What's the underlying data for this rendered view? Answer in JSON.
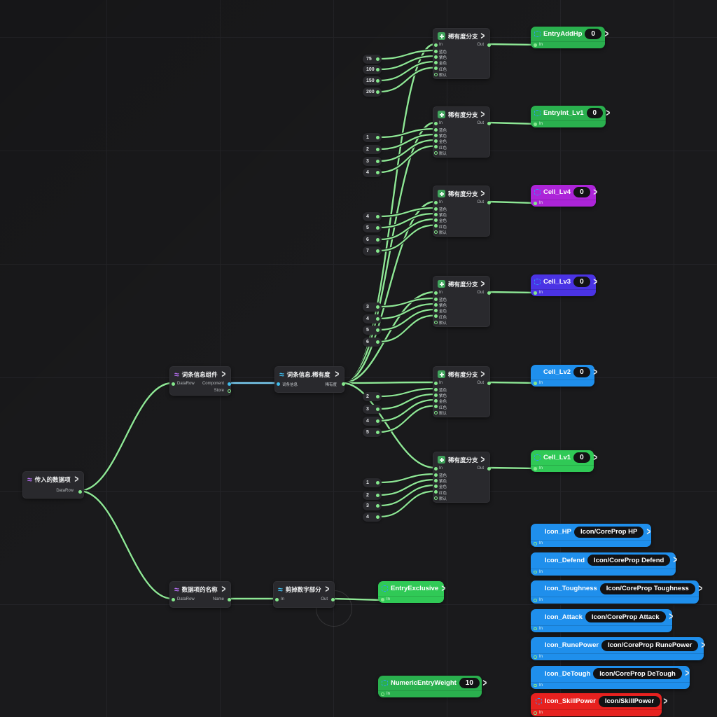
{
  "colors": {
    "background": "#1a1a1c",
    "grid_line": "#242428",
    "wire_green": "#8ee795",
    "wire_cyan": "#7acdf2",
    "port_dot_green": "#84e88c",
    "port_dot_cyan": "#3fbcec",
    "green": "#2ab04e",
    "green_bright": "#30c956",
    "purple": "#ac24d8",
    "indigo": "#4a33e4",
    "blue": "#1f8fec",
    "red": "#e7211f",
    "icon_blue": "#2e9df7",
    "icon_purple": "#b66ef2",
    "icon_cyan": "#3fbcec",
    "branch_icon_green": "#3fa35b"
  },
  "source_node": {
    "title": "传入的数据项",
    "out_port": "DataRow"
  },
  "component_node": {
    "title": "词条信息组件",
    "in_port": "DataRow",
    "out_port_1": "Component",
    "out_port_2": "Store"
  },
  "rarity_get_node": {
    "title": "词条信息.稀有度",
    "in_port": "词条信息",
    "out_port": "稀有度"
  },
  "name_node": {
    "title": "数据项的名称",
    "in_port": "DataRow",
    "out_port": "Name"
  },
  "trim_node": {
    "title": "剪掉数字部分",
    "in_port": "In",
    "out_port": "Out"
  },
  "branch_template": {
    "title": "稀有度分支",
    "in_label": "In",
    "out_label": "Out",
    "case_labels": [
      "蓝色",
      "紫色",
      "金色",
      "红色"
    ],
    "default_label": "默认"
  },
  "branch_rows": [
    {
      "constants": [
        "75",
        "100",
        "150",
        "200"
      ],
      "output": {
        "name": "EntryAddHp",
        "value": "0",
        "color_key": "green"
      }
    },
    {
      "constants": [
        "1",
        "2",
        "3",
        "4"
      ],
      "output": {
        "name": "EntryInt_Lv1",
        "value": "0",
        "color_key": "green"
      }
    },
    {
      "constants": [
        "4",
        "5",
        "6",
        "7"
      ],
      "output": {
        "name": "Cell_Lv4",
        "value": "0",
        "color_key": "purple"
      }
    },
    {
      "constants": [
        "3",
        "4",
        "5",
        "6"
      ],
      "output": {
        "name": "Cell_Lv3",
        "value": "0",
        "color_key": "indigo"
      }
    },
    {
      "constants": [
        "2",
        "3",
        "4",
        "5"
      ],
      "output": {
        "name": "Cell_Lv2",
        "value": "0",
        "color_key": "blue"
      }
    },
    {
      "constants": [
        "1",
        "2",
        "3",
        "4"
      ],
      "output": {
        "name": "Cell_Lv1",
        "value": "0",
        "color_key": "green_bright"
      }
    }
  ],
  "exclusive_pill": {
    "name": "EntryExclusive",
    "color_key": "green_bright",
    "in_label": "In"
  },
  "weight_pill": {
    "name": "NumericEntryWeight",
    "value": "10",
    "color_key": "green",
    "in_label": "In"
  },
  "icon_pills": [
    {
      "name": "Icon_HP",
      "value": "Icon/CoreProp HP",
      "color_key": "blue"
    },
    {
      "name": "Icon_Defend",
      "value": "Icon/CoreProp Defend",
      "color_key": "blue"
    },
    {
      "name": "Icon_Toughness",
      "value": "Icon/CoreProp Toughness",
      "color_key": "blue"
    },
    {
      "name": "Icon_Attack",
      "value": "Icon/CoreProp Attack",
      "color_key": "blue"
    },
    {
      "name": "Icon_RunePower",
      "value": "Icon/CoreProp RunePower",
      "color_key": "blue"
    },
    {
      "name": "Icon_DeTough",
      "value": "Icon/CoreProp DeTough",
      "color_key": "blue"
    },
    {
      "name": "Icon_SkillPower",
      "value": "Icon/SkillPower",
      "color_key": "red"
    }
  ],
  "port_labels": {
    "in": "In",
    "out": "Out"
  }
}
